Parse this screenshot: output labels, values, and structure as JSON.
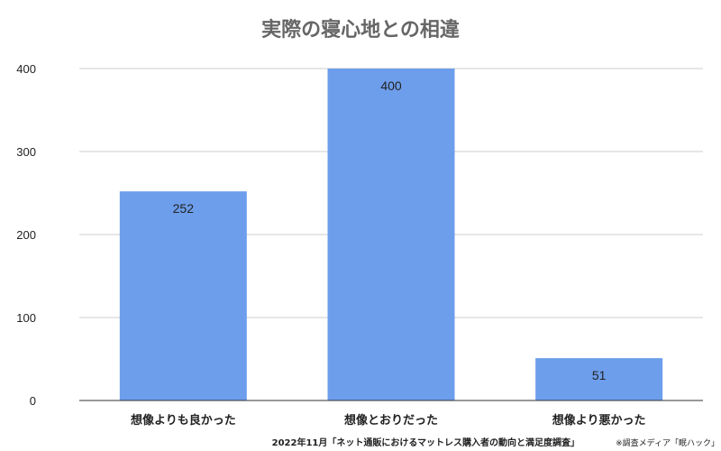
{
  "chart_data": {
    "type": "bar",
    "title": "実際の寝心地との相違",
    "categories": [
      "想像よりも良かった",
      "想像とおりだった",
      "想像より悪かった"
    ],
    "values": [
      252,
      400,
      51
    ],
    "data_labels": [
      "252",
      "400",
      "51"
    ],
    "ylim": [
      0,
      400
    ],
    "yticks": [
      0,
      100,
      200,
      300,
      400
    ],
    "xlabel": "",
    "ylabel": "",
    "grid": true,
    "legend": "none",
    "bar_color": "#6d9eeb"
  },
  "footer": {
    "source": "2022年11月「ネット通販におけるマットレス購入者の動向と満足度調査」",
    "note": "※調査メディア「眠ハック」"
  },
  "colors": {
    "bar": "#6d9eeb",
    "grid": "#cccccc",
    "axis": "#333333",
    "title": "#666666"
  }
}
